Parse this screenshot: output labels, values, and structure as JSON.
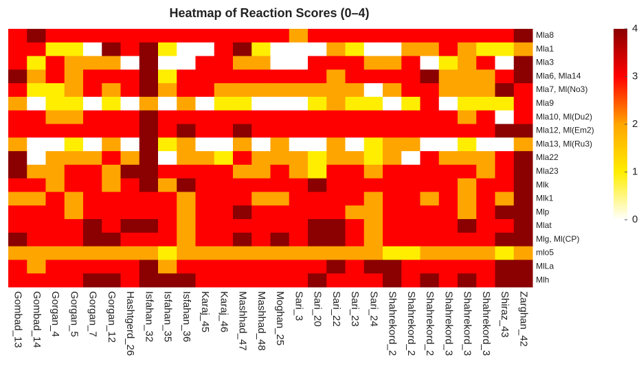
{
  "chart_data": {
    "type": "heatmap",
    "title": "Heatmap of Reaction Scores (0–4)",
    "x": [
      "Gombad_13",
      "Gombad_14",
      "Gorgan_4",
      "Gorgan_5",
      "Gorgan_7",
      "Gorgan_12",
      "Hashtgerd_26",
      "Isfahan_32",
      "Isfahan_35",
      "Isfahan_36",
      "Karaj_45",
      "Karaj_46",
      "Mashhad_47",
      "Mashhad_48",
      "Moghan_25",
      "Sari_3",
      "Sari_20",
      "Sari_22",
      "Sari_23",
      "Sari_24",
      "Shahrekord_2",
      "Shahrekord_2",
      "Shahrekord_2",
      "Shahrekord_3",
      "Shahrekord_3",
      "Shahrekord_3",
      "Shiraz_43",
      "Zarghan_42"
    ],
    "y": [
      "Mla8",
      "Mla1",
      "Mla3",
      "Mla6, Mla14",
      "Mla7, Ml(No3)",
      "Mla9",
      "Mla10, Ml(Du2)",
      "Mla12, Ml(Em2)",
      "Mla13, Ml(Ru3)",
      "Mla22",
      "Mla23",
      "Mlk",
      "Mlk1",
      "Mlp",
      "Mlat",
      "Mlg, Ml(CP)",
      "mlo5",
      "MlLa",
      "Mlh"
    ],
    "z": [
      [
        3,
        4,
        3,
        3,
        3,
        3,
        3,
        3,
        3,
        3,
        3,
        3,
        3,
        3,
        3,
        2,
        3,
        3,
        3,
        3,
        3,
        3,
        3,
        3,
        3,
        3,
        3,
        4
      ],
      [
        3,
        3,
        1,
        1,
        0,
        4,
        3,
        4,
        1,
        0,
        0,
        3,
        4,
        1,
        0,
        0,
        0,
        2,
        1,
        0,
        0,
        2,
        2,
        3,
        2,
        1,
        1,
        2
      ],
      [
        3,
        1,
        3,
        2,
        2,
        2,
        0,
        4,
        0,
        0,
        3,
        3,
        2,
        2,
        0,
        0,
        3,
        3,
        3,
        2,
        2,
        3,
        0,
        1,
        2,
        3,
        0,
        4
      ],
      [
        4,
        2,
        3,
        2,
        3,
        3,
        3,
        4,
        1,
        3,
        3,
        3,
        3,
        3,
        3,
        3,
        3,
        2,
        3,
        3,
        3,
        3,
        4,
        2,
        2,
        2,
        3,
        4
      ],
      [
        3,
        1,
        1,
        2,
        3,
        2,
        3,
        4,
        2,
        3,
        3,
        2,
        2,
        2,
        2,
        2,
        2,
        2,
        2,
        0,
        2,
        3,
        3,
        2,
        2,
        2,
        4,
        3
      ],
      [
        2,
        0,
        1,
        1,
        0,
        1,
        0,
        2,
        0,
        2,
        0,
        1,
        1,
        0,
        0,
        0,
        1,
        2,
        1,
        1,
        0,
        1,
        3,
        0,
        1,
        1,
        1,
        3
      ],
      [
        3,
        3,
        2,
        2,
        3,
        3,
        3,
        4,
        3,
        3,
        3,
        3,
        3,
        3,
        3,
        3,
        3,
        3,
        3,
        3,
        3,
        3,
        3,
        3,
        2,
        3,
        0,
        3
      ],
      [
        3,
        3,
        3,
        3,
        3,
        3,
        3,
        4,
        3,
        4,
        3,
        3,
        4,
        3,
        3,
        3,
        3,
        3,
        3,
        3,
        3,
        3,
        3,
        3,
        3,
        3,
        4,
        4
      ],
      [
        2,
        0,
        0,
        1,
        0,
        2,
        0,
        4,
        1,
        2,
        0,
        0,
        2,
        0,
        2,
        0,
        0,
        2,
        0,
        1,
        2,
        2,
        0,
        0,
        1,
        0,
        0,
        2
      ],
      [
        4,
        0,
        2,
        2,
        2,
        3,
        2,
        4,
        0,
        2,
        2,
        1,
        3,
        2,
        2,
        2,
        1,
        2,
        2,
        1,
        2,
        0,
        3,
        2,
        2,
        2,
        3,
        4
      ],
      [
        4,
        2,
        2,
        3,
        3,
        2,
        4,
        4,
        3,
        3,
        3,
        3,
        2,
        2,
        3,
        2,
        1,
        3,
        3,
        2,
        3,
        3,
        3,
        3,
        3,
        2,
        3,
        4
      ],
      [
        3,
        3,
        2,
        3,
        3,
        2,
        3,
        4,
        2,
        4,
        3,
        3,
        3,
        3,
        3,
        3,
        4,
        3,
        3,
        3,
        3,
        3,
        3,
        3,
        2,
        3,
        3,
        4
      ],
      [
        2,
        2,
        3,
        2,
        3,
        3,
        3,
        3,
        3,
        2,
        3,
        3,
        3,
        2,
        2,
        3,
        3,
        3,
        3,
        2,
        3,
        3,
        2,
        3,
        2,
        3,
        2,
        4
      ],
      [
        3,
        3,
        3,
        2,
        3,
        3,
        3,
        3,
        3,
        2,
        3,
        3,
        4,
        3,
        3,
        3,
        3,
        3,
        2,
        2,
        3,
        3,
        3,
        3,
        2,
        3,
        4,
        4
      ],
      [
        3,
        3,
        3,
        3,
        4,
        3,
        4,
        4,
        3,
        2,
        3,
        3,
        3,
        3,
        3,
        3,
        4,
        4,
        3,
        2,
        3,
        3,
        3,
        3,
        4,
        3,
        3,
        4
      ],
      [
        4,
        3,
        3,
        3,
        4,
        4,
        3,
        3,
        3,
        2,
        3,
        3,
        4,
        3,
        4,
        3,
        4,
        4,
        3,
        2,
        3,
        3,
        3,
        3,
        3,
        3,
        4,
        4
      ],
      [
        2,
        2,
        2,
        2,
        2,
        2,
        2,
        2,
        1,
        2,
        2,
        2,
        2,
        2,
        2,
        2,
        2,
        2,
        2,
        2,
        1,
        1,
        2,
        2,
        2,
        2,
        1,
        2
      ],
      [
        3,
        2,
        3,
        3,
        3,
        3,
        3,
        4,
        2,
        3,
        3,
        3,
        3,
        3,
        3,
        3,
        3,
        4,
        3,
        4,
        4,
        3,
        3,
        3,
        3,
        3,
        4,
        4
      ],
      [
        3,
        3,
        3,
        3,
        4,
        4,
        3,
        4,
        4,
        4,
        3,
        3,
        3,
        3,
        3,
        3,
        4,
        3,
        3,
        3,
        4,
        3,
        4,
        3,
        4,
        3,
        4,
        4
      ]
    ],
    "colorscale": [
      "#ffffff",
      "#ffee00",
      "#ffa500",
      "#ff0000",
      "#8b0000"
    ],
    "zlim": [
      0,
      4
    ],
    "zticks": [
      0,
      1,
      2,
      3,
      4
    ]
  }
}
